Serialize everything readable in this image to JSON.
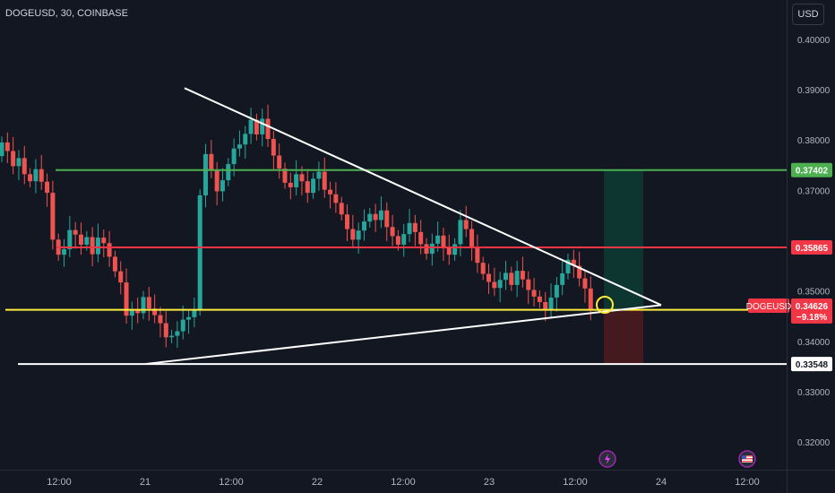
{
  "header": {
    "title": "DOGEUSD, 30, COINBASE"
  },
  "currency_button": {
    "label": "USD"
  },
  "symbol_badge": {
    "label": "DOGEUSD",
    "price": "0.34626",
    "change": "−9.18%"
  },
  "colors": {
    "background": "#131722",
    "up": "#26a69a",
    "down": "#ef5350",
    "green_line": "#4caf50",
    "red_line": "#f23645",
    "yellow_line": "#ffeb3b",
    "white_line": "#ffffff",
    "target_zone": "#0d3a33",
    "stop_zone": "#4a1b1f"
  },
  "icons": [
    "lightning-event-icon",
    "us-flag-event-icon"
  ],
  "chart_data": {
    "type": "candlestick",
    "title": "DOGEUSD, 30, COINBASE",
    "xlabel": "",
    "ylabel": "",
    "x_ticks": [
      {
        "label": "12:00",
        "t": 0
      },
      {
        "label": "21",
        "t": 24
      },
      {
        "label": "12:00",
        "t": 48
      },
      {
        "label": "22",
        "t": 72
      },
      {
        "label": "12:00",
        "t": 96
      },
      {
        "label": "23",
        "t": 120
      },
      {
        "label": "12:00",
        "t": 144
      },
      {
        "label": "24",
        "t": 168
      },
      {
        "label": "12:00",
        "t": 192
      }
    ],
    "ylim": [
      0.3145,
      0.4078
    ],
    "y_ticks": [
      "0.40000",
      "0.39000",
      "0.38000",
      "0.37000",
      "0.35000",
      "0.34000",
      "0.33000",
      "0.32000"
    ],
    "price_labels": [
      {
        "value": 0.37402,
        "text": "0.37402",
        "color": "#4caf50"
      },
      {
        "value": 0.35865,
        "text": "0.35865",
        "color": "#f23645"
      },
      {
        "value": 0.34626,
        "text": "0.34626",
        "color": "#f23645"
      },
      {
        "value": 0.33548,
        "text": "0.33548",
        "color": "#ffffff"
      }
    ],
    "horizontal_lines": [
      {
        "value": 0.37402,
        "t_from": -1,
        "color": "#4caf50"
      },
      {
        "value": 0.35865,
        "t_from": -0.6,
        "color": "#f23645"
      },
      {
        "value": 0.34626,
        "t_from": -15,
        "color": "#ffeb3b"
      },
      {
        "value": 0.33548,
        "t_from": -11.5,
        "color": "#ffffff"
      }
    ],
    "trendlines": [
      {
        "from": [
          35,
          0.3903
        ],
        "to": [
          168,
          0.3472
        ]
      },
      {
        "from": [
          24,
          0.3355
        ],
        "to": [
          168,
          0.3472
        ]
      }
    ],
    "position": {
      "t_from": 152,
      "t_to": 163,
      "entry": 0.34626,
      "target": 0.37402,
      "stop": 0.33548
    },
    "closes": [
      0.3795,
      0.3778,
      0.3748,
      0.3764,
      0.3732,
      0.3718,
      0.3742,
      0.3717,
      0.3695,
      0.3602,
      0.3572,
      0.3583,
      0.3621,
      0.3612,
      0.3592,
      0.3607,
      0.3573,
      0.3606,
      0.3595,
      0.3568,
      0.3539,
      0.3517,
      0.3451,
      0.3463,
      0.3456,
      0.3488,
      0.3465,
      0.3452,
      0.3436,
      0.3408,
      0.3411,
      0.342,
      0.3443,
      0.3448,
      0.3463,
      0.369,
      0.3772,
      0.374,
      0.3698,
      0.372,
      0.3752,
      0.3783,
      0.3791,
      0.3812,
      0.384,
      0.3811,
      0.3842,
      0.3802,
      0.3769,
      0.3743,
      0.3715,
      0.3706,
      0.3732,
      0.3718,
      0.3695,
      0.3723,
      0.3737,
      0.3701,
      0.3692,
      0.3675,
      0.3652,
      0.3623,
      0.3602,
      0.362,
      0.3638,
      0.3653,
      0.3641,
      0.366,
      0.3627,
      0.3609,
      0.3592,
      0.3613,
      0.3635,
      0.3617,
      0.3593,
      0.3574,
      0.3594,
      0.361,
      0.3588,
      0.3572,
      0.3593,
      0.3641,
      0.3623,
      0.3588,
      0.3556,
      0.3534,
      0.3518,
      0.3506,
      0.3522,
      0.3536,
      0.3512,
      0.354,
      0.3523,
      0.3502,
      0.3489,
      0.3478,
      0.3464,
      0.3487,
      0.3512,
      0.3535,
      0.3562,
      0.355,
      0.3525,
      0.3505,
      0.3462
    ],
    "opens": [
      0.3768,
      0.3795,
      0.3778,
      0.3748,
      0.3764,
      0.3732,
      0.3718,
      0.3742,
      0.3717,
      0.3695,
      0.3602,
      0.3572,
      0.3583,
      0.3621,
      0.3612,
      0.3592,
      0.3607,
      0.3573,
      0.3606,
      0.3595,
      0.3568,
      0.3539,
      0.3517,
      0.3451,
      0.3463,
      0.3456,
      0.3488,
      0.3465,
      0.3452,
      0.3436,
      0.3408,
      0.3411,
      0.342,
      0.3443,
      0.3448,
      0.3463,
      0.369,
      0.3772,
      0.374,
      0.3698,
      0.372,
      0.3752,
      0.3783,
      0.3791,
      0.3812,
      0.384,
      0.3811,
      0.3842,
      0.3802,
      0.3769,
      0.3743,
      0.3715,
      0.3706,
      0.3732,
      0.3718,
      0.3695,
      0.3723,
      0.3737,
      0.3701,
      0.3692,
      0.3675,
      0.3652,
      0.3623,
      0.3602,
      0.362,
      0.3638,
      0.3653,
      0.3641,
      0.366,
      0.3627,
      0.3609,
      0.3592,
      0.3613,
      0.3635,
      0.3617,
      0.3593,
      0.3574,
      0.3594,
      0.361,
      0.3588,
      0.3572,
      0.3593,
      0.3641,
      0.3623,
      0.3588,
      0.3556,
      0.3534,
      0.3518,
      0.3506,
      0.3522,
      0.3536,
      0.3512,
      0.354,
      0.3523,
      0.3502,
      0.3489,
      0.3478,
      0.3464,
      0.3487,
      0.3512,
      0.3535,
      0.3562,
      0.355,
      0.3525,
      0.3505
    ],
    "t_start": -16,
    "t_step": 1.58
  }
}
